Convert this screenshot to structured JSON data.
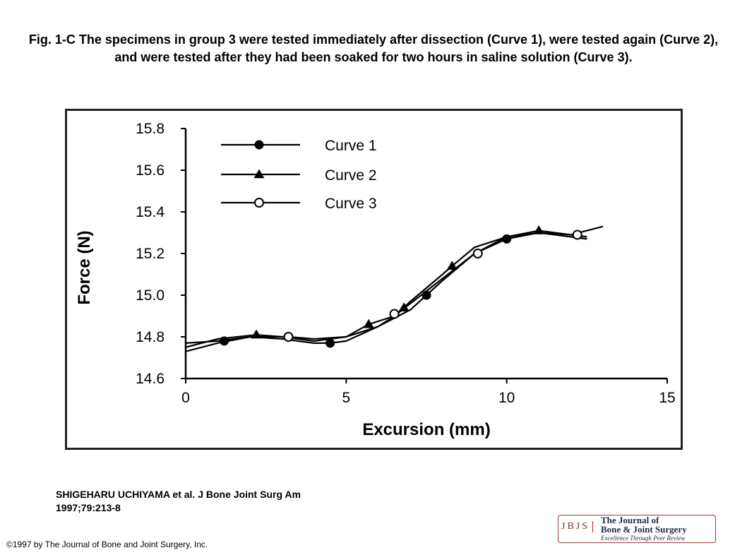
{
  "caption": "Fig. 1-C The specimens in group 3 were tested immediately after dissection (Curve 1), were tested again (Curve 2), and were tested after they had been soaked for two hours in saline solution (Curve 3).",
  "citation": {
    "line1": "SHIGEHARU UCHIYAMA et al. J Bone Joint Surg Am",
    "line2": "1997;79:213-8"
  },
  "copyright": "©1997 by The Journal of Bone and Joint Surgery, Inc.",
  "logo": {
    "abbrev": "JBJS",
    "line1": "The Journal of",
    "line2": "Bone & Joint Surgery",
    "line3": "Excellence Through Peer Review"
  },
  "colors": {
    "frame": "#222222",
    "curves": "#000000",
    "logo_accent": "#8a2f2f"
  },
  "chart_data": {
    "type": "line",
    "title": "",
    "xlabel": "Excursion (mm)",
    "ylabel": "Force (N)",
    "xlim": [
      0,
      15
    ],
    "ylim": [
      14.6,
      15.8
    ],
    "xticks": [
      "0",
      "5",
      "10",
      "15"
    ],
    "yticks": [
      "14.6",
      "14.8",
      "15.0",
      "15.2",
      "15.4",
      "15.6",
      "15.8"
    ],
    "legend_position": "top-left",
    "grid": false,
    "series": [
      {
        "name": "Curve 1",
        "marker": "filled-circle",
        "x": [
          0,
          1,
          2,
          3,
          4,
          4.5,
          5,
          6,
          7,
          7.5,
          8,
          9,
          10,
          11,
          12,
          12.5
        ],
        "y": [
          14.77,
          14.78,
          14.8,
          14.79,
          14.77,
          14.77,
          14.78,
          14.85,
          14.93,
          15.0,
          15.07,
          15.2,
          15.27,
          15.3,
          15.28,
          15.27
        ],
        "markers_x": [
          1.2,
          4.5,
          7.5,
          10
        ],
        "markers_y": [
          14.78,
          14.77,
          15.0,
          15.27
        ]
      },
      {
        "name": "Curve 2",
        "marker": "filled-triangle",
        "x": [
          0,
          1,
          2.2,
          3,
          4,
          5,
          5.7,
          6.5,
          7,
          8,
          8.3,
          9,
          10,
          11,
          12,
          12.5
        ],
        "y": [
          14.75,
          14.79,
          14.81,
          14.8,
          14.78,
          14.8,
          14.86,
          14.9,
          14.97,
          15.1,
          15.14,
          15.23,
          15.28,
          15.31,
          15.29,
          15.28
        ],
        "markers_x": [
          2.2,
          5.7,
          6.8,
          8.3,
          11
        ],
        "markers_y": [
          14.81,
          14.86,
          14.94,
          15.14,
          15.31
        ]
      },
      {
        "name": "Curve 3",
        "marker": "open-circle",
        "x": [
          0,
          1,
          2,
          3.2,
          4,
          5,
          6,
          6.5,
          7,
          8,
          9,
          10,
          11,
          12,
          13
        ],
        "y": [
          14.73,
          14.77,
          14.8,
          14.8,
          14.79,
          14.8,
          14.85,
          14.9,
          14.96,
          15.08,
          15.2,
          15.28,
          15.3,
          15.29,
          15.33
        ],
        "markers_x": [
          3.2,
          6.5,
          9.1,
          12.2
        ],
        "markers_y": [
          14.8,
          14.91,
          15.2,
          15.29
        ]
      }
    ]
  }
}
